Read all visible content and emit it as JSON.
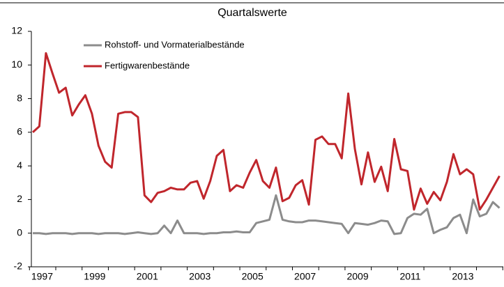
{
  "chart_data": {
    "type": "line",
    "title": "Quartalswerte",
    "categories": [
      null,
      "1997",
      null,
      null,
      null,
      null,
      null,
      null,
      null,
      "1999",
      null,
      null,
      null,
      null,
      null,
      null,
      null,
      "2001",
      null,
      null,
      null,
      null,
      null,
      null,
      null,
      "2003",
      null,
      null,
      null,
      null,
      null,
      null,
      null,
      "2005",
      null,
      null,
      null,
      null,
      null,
      null,
      null,
      "2007",
      null,
      null,
      null,
      null,
      null,
      null,
      null,
      "2009",
      null,
      null,
      null,
      null,
      null,
      null,
      null,
      "2011",
      null,
      null,
      null,
      null,
      null,
      null,
      null,
      "2013",
      null,
      null,
      null,
      null,
      null,
      null
    ],
    "series": [
      {
        "name": "Rohstoff- und Vormaterialbestände",
        "color": "#8c8c8c",
        "values": [
          0,
          0,
          -0.05,
          0,
          0,
          0,
          -0.05,
          0,
          0,
          0,
          -0.05,
          0,
          0,
          0,
          -0.05,
          0,
          0.05,
          0,
          -0.05,
          0,
          0.45,
          0,
          0.75,
          0,
          0,
          0,
          -0.05,
          0,
          0,
          0.05,
          0.05,
          0.1,
          0.05,
          0.05,
          0.6,
          0.7,
          0.8,
          2.25,
          0.8,
          0.7,
          0.65,
          0.65,
          0.75,
          0.75,
          0.7,
          0.65,
          0.6,
          0.55,
          0,
          0.6,
          0.55,
          0.5,
          0.6,
          0.75,
          0.7,
          -0.05,
          0,
          0.9,
          1.15,
          1.1,
          1.45,
          0,
          0.2,
          0.35,
          0.9,
          1.1,
          0,
          2.0,
          1.0,
          1.15,
          1.85,
          1.5
        ]
      },
      {
        "name": "Fertigwarenbestände",
        "color": "#c0262c",
        "values": [
          6.0,
          6.35,
          10.7,
          9.5,
          8.35,
          8.65,
          7.0,
          7.65,
          8.2,
          7.1,
          5.2,
          4.25,
          3.9,
          7.1,
          7.2,
          7.2,
          6.9,
          2.25,
          1.85,
          2.4,
          2.5,
          2.7,
          2.6,
          2.6,
          3.0,
          3.1,
          2.05,
          3.1,
          4.6,
          4.95,
          2.5,
          2.85,
          2.7,
          3.6,
          4.35,
          3.1,
          2.7,
          3.9,
          1.9,
          2.1,
          2.85,
          3.15,
          1.7,
          5.55,
          5.75,
          5.3,
          5.3,
          4.45,
          8.3,
          5.0,
          2.9,
          4.8,
          3.05,
          3.95,
          2.5,
          5.6,
          3.8,
          3.7,
          1.4,
          2.65,
          1.75,
          2.45,
          1.95,
          3.05,
          4.7,
          3.5,
          3.8,
          3.5,
          1.4,
          2.0,
          2.7,
          3.4
        ]
      }
    ],
    "ylim": [
      -2,
      12
    ],
    "yticks": [
      -2,
      0,
      2,
      4,
      6,
      8,
      10,
      12
    ]
  }
}
